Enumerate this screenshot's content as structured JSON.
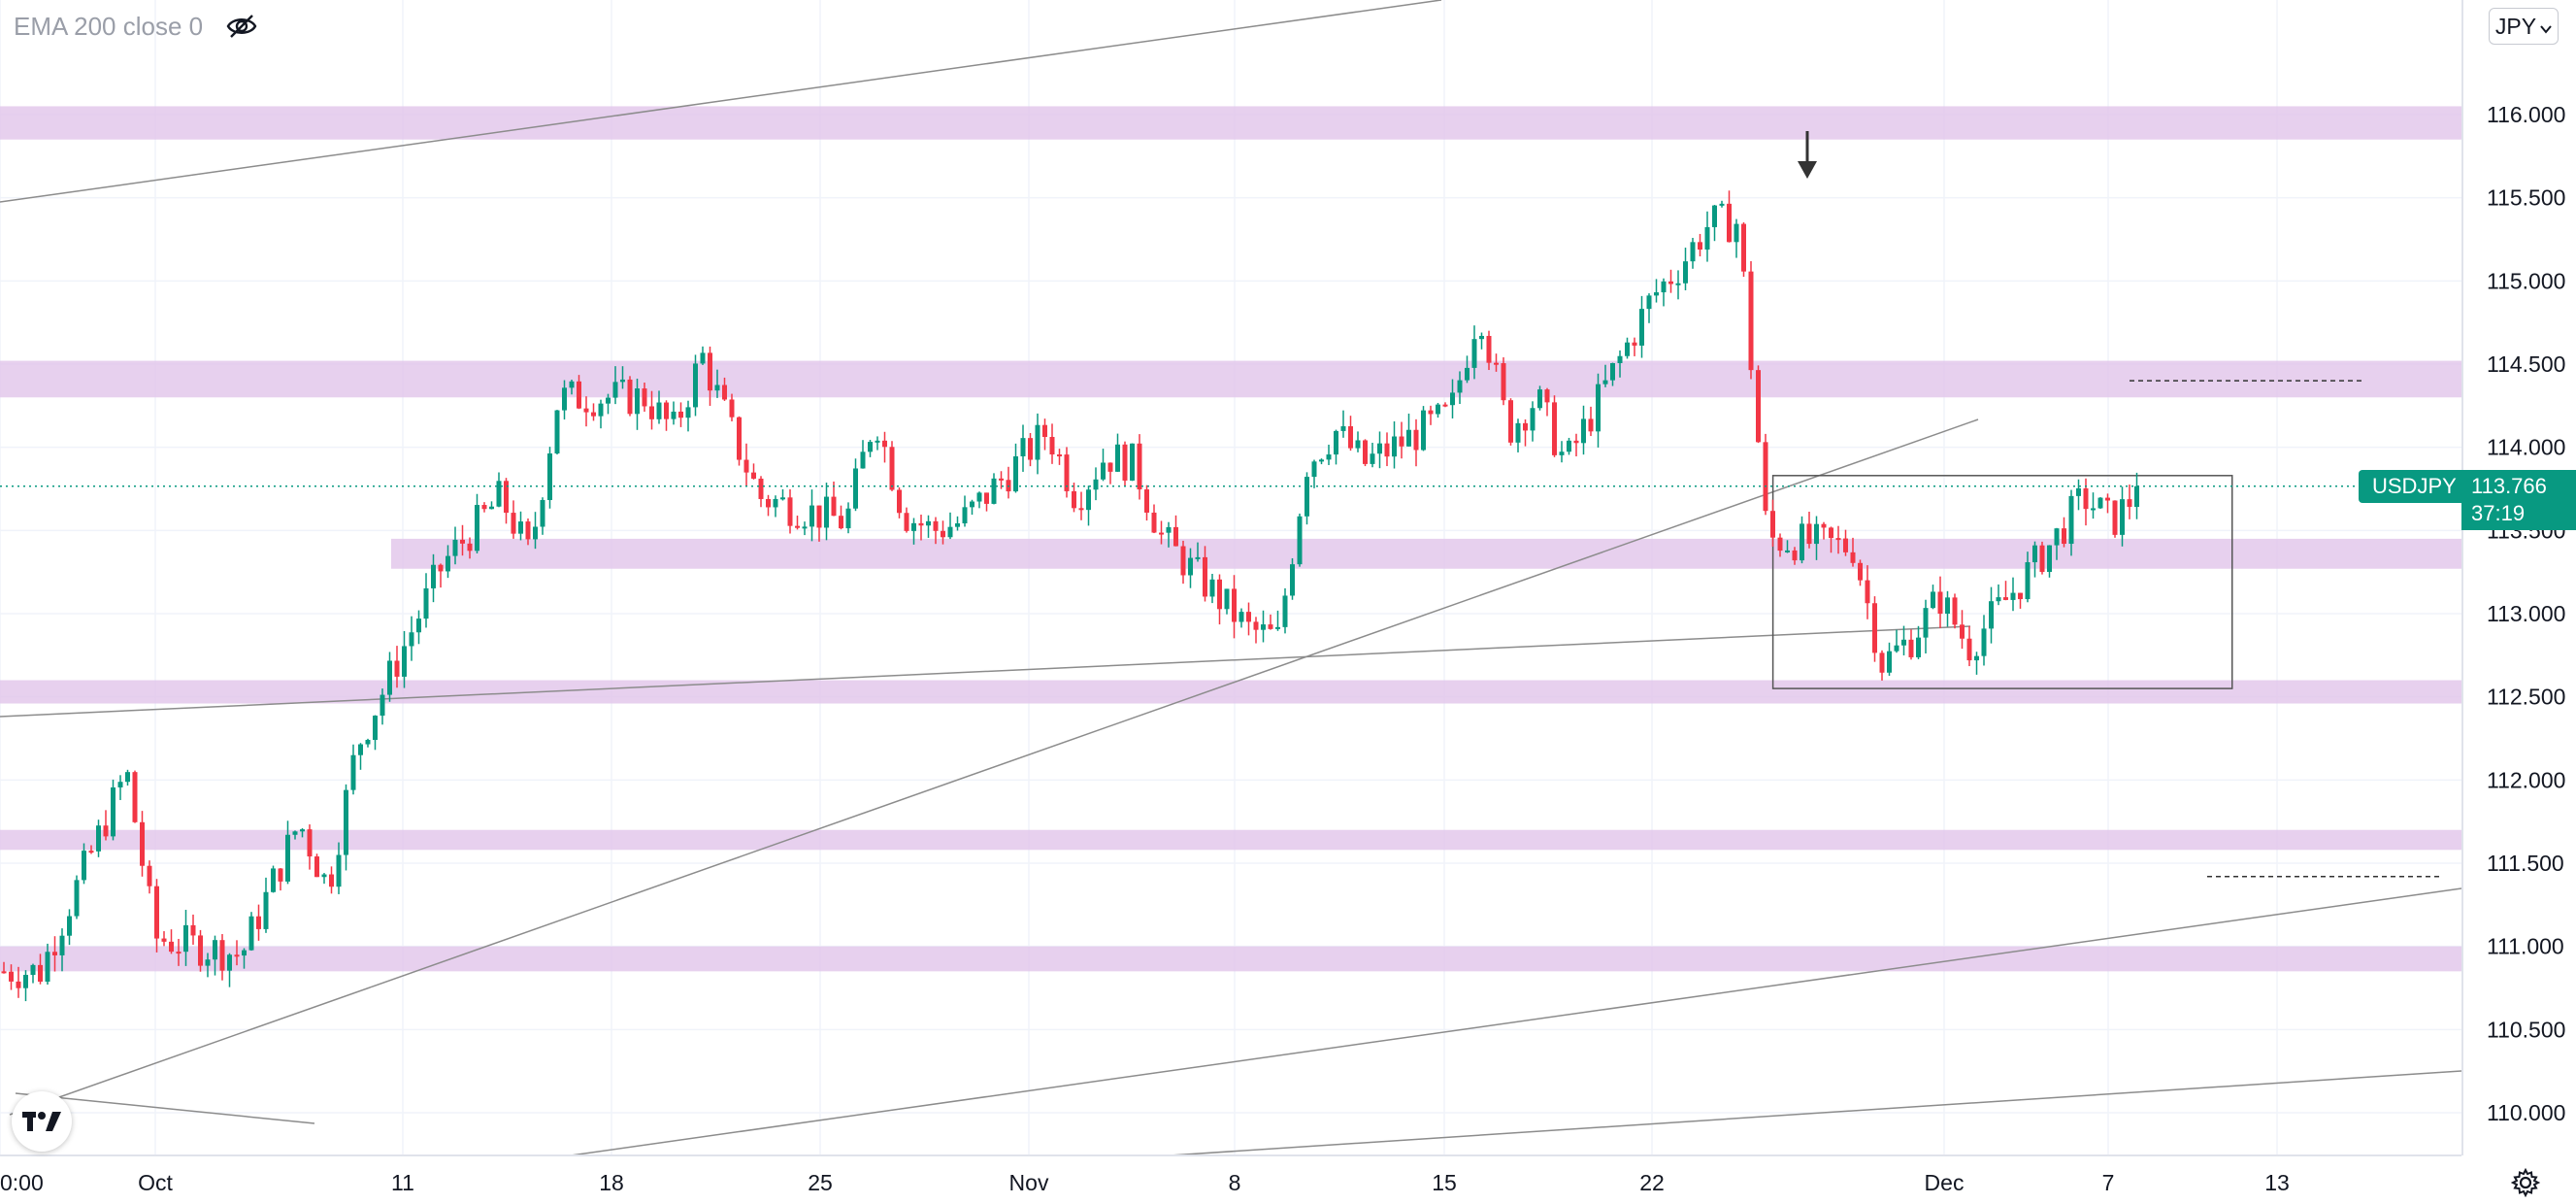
{
  "indicator": {
    "label": "EMA 200 close 0",
    "visibility_icon": "eye-off-icon"
  },
  "currency": {
    "label": "JPY"
  },
  "symbol": {
    "name": "USDJPY",
    "price": "113.766",
    "countdown": "37:19"
  },
  "logo": {
    "text": "TV",
    "icon": "tradingview-logo"
  },
  "settings": {
    "icon": "gear-icon"
  },
  "colors": {
    "up": "#089981",
    "down": "#f23645",
    "zone": "#e1c4ea",
    "grid": "#f0f3fa",
    "trendline": "#888888",
    "axis_text": "#131722",
    "price_line": "#089981"
  },
  "chart_data": {
    "type": "candlestick",
    "symbol": "USDJPY",
    "ylim": [
      109.8,
      116.6
    ],
    "y_ticks": [
      "116.000",
      "115.500",
      "115.000",
      "114.500",
      "114.000",
      "113.500",
      "113.000",
      "112.500",
      "112.000",
      "111.500",
      "111.000",
      "110.500",
      "110.000"
    ],
    "x_ticks": [
      "0:00",
      "Oct",
      "11",
      "18",
      "25",
      "Nov",
      "8",
      "15",
      "22",
      "Dec",
      "7",
      "13"
    ],
    "last_price": 113.766,
    "ohlc_keyframes": [
      {
        "date": "Sep 27",
        "close": 110.85
      },
      {
        "date": "Sep 29",
        "close": 111.65
      },
      {
        "date": "Sep 30",
        "close": 112.05
      },
      {
        "date": "Oct 1",
        "close": 111.05
      },
      {
        "date": "Oct 4",
        "close": 110.95
      },
      {
        "date": "Oct 6",
        "close": 111.75
      },
      {
        "date": "Oct 7",
        "close": 111.35
      },
      {
        "date": "Oct 8",
        "close": 112.2
      },
      {
        "date": "Oct 11",
        "close": 113.3
      },
      {
        "date": "Oct 13",
        "close": 113.7
      },
      {
        "date": "Oct 14",
        "close": 113.35
      },
      {
        "date": "Oct 15",
        "close": 114.3
      },
      {
        "date": "Oct 18",
        "close": 114.3
      },
      {
        "date": "Oct 19",
        "close": 114.1
      },
      {
        "date": "Oct 20",
        "close": 114.55
      },
      {
        "date": "Oct 21",
        "close": 114.1
      },
      {
        "date": "Oct 22",
        "close": 113.7
      },
      {
        "date": "Oct 25",
        "close": 113.55
      },
      {
        "date": "Oct 26",
        "close": 114.2
      },
      {
        "date": "Oct 27",
        "close": 113.6
      },
      {
        "date": "Oct 28",
        "close": 113.5
      },
      {
        "date": "Oct 29",
        "close": 113.55
      },
      {
        "date": "Nov 1",
        "close": 114.1
      },
      {
        "date": "Nov 2",
        "close": 113.7
      },
      {
        "date": "Nov 3",
        "close": 113.95
      },
      {
        "date": "Nov 4",
        "close": 113.9
      },
      {
        "date": "Nov 5",
        "close": 113.45
      },
      {
        "date": "Nov 8",
        "close": 112.9
      },
      {
        "date": "Nov 9",
        "close": 112.85
      },
      {
        "date": "Nov 10",
        "close": 113.9
      },
      {
        "date": "Nov 11",
        "close": 114.1
      },
      {
        "date": "Nov 12",
        "close": 113.9
      },
      {
        "date": "Nov 15",
        "close": 114.2
      },
      {
        "date": "Nov 16",
        "close": 114.85
      },
      {
        "date": "Nov 17",
        "close": 114.1
      },
      {
        "date": "Nov 18",
        "close": 114.3
      },
      {
        "date": "Nov 19",
        "close": 113.9
      },
      {
        "date": "Nov 22",
        "close": 114.9
      },
      {
        "date": "Nov 23",
        "close": 115.1
      },
      {
        "date": "Nov 24",
        "close": 115.35
      },
      {
        "date": "Nov 25",
        "close": 115.35
      },
      {
        "date": "Nov 26",
        "close": 113.45
      },
      {
        "date": "Nov 29",
        "close": 113.4
      },
      {
        "date": "Nov 30",
        "close": 112.7
      },
      {
        "date": "Dec 1",
        "close": 112.85
      },
      {
        "date": "Dec 2",
        "close": 113.1
      },
      {
        "date": "Dec 3",
        "close": 112.8
      },
      {
        "date": "Dec 6",
        "close": 113.45
      },
      {
        "date": "Dec 7",
        "close": 113.7
      },
      {
        "date": "Dec 8",
        "close": 113.55
      },
      {
        "date": "Dec 9",
        "close": 113.766
      }
    ],
    "support_resistance_zones": [
      {
        "low": 115.85,
        "high": 116.05
      },
      {
        "low": 114.3,
        "high": 114.52
      },
      {
        "low": 113.27,
        "high": 113.45
      },
      {
        "low": 112.46,
        "high": 112.6
      },
      {
        "low": 111.58,
        "high": 111.7
      },
      {
        "low": 110.85,
        "high": 111.0
      }
    ],
    "range_box": {
      "from": "Nov 26",
      "to": "Dec 13",
      "low": 112.55,
      "high": 113.83
    },
    "dashed_levels": [
      114.4,
      111.42
    ],
    "annotation": "down-arrow-marker",
    "grid": true
  }
}
